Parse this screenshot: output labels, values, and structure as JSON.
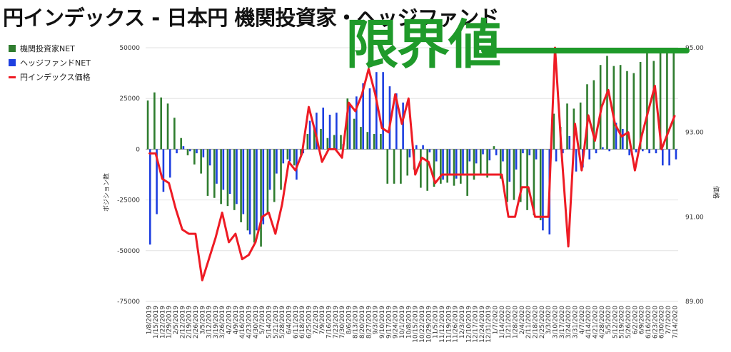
{
  "header": {
    "title": "円インデックス - 日本円 機関投資家・ヘッジファンド"
  },
  "annotation": {
    "limit_label": "限界値",
    "limit_color": "#1f9a2a"
  },
  "legend": [
    {
      "label": "機関投資家NET",
      "color": "#2f7d2f"
    },
    {
      "label": "ヘッジファンドNET",
      "color": "#1e3fe0"
    },
    {
      "label": "円インデックス価格",
      "color": "#ee1b24"
    }
  ],
  "chart_data": {
    "type": "bar",
    "title": "円インデックス - 日本円 機関投資家・ヘッジファンド",
    "ylabel_left": "ポジション数",
    "ylabel_right": "価格",
    "ylim_left": [
      -75000,
      50000
    ],
    "ylim_right": [
      89,
      95
    ],
    "y_ticks_left": [
      "50000",
      "25000",
      "0",
      "-25000",
      "-50000",
      "-75000"
    ],
    "y_ticks_right": [
      "95.00",
      "93.00",
      "91.00",
      "89.00"
    ],
    "limit_line_value": 95,
    "x_tick_labels": [
      "1/8/2019",
      "1/15/2019",
      "1/22/2019",
      "1/29/2019",
      "2/5/2019",
      "2/12/2019",
      "2/19/2019",
      "2/26/2019",
      "3/5/2019",
      "3/12/2019",
      "3/19/2019",
      "3/26/2019",
      "4/2/2019",
      "4/9/2019",
      "4/16/2019",
      "4/23/2019",
      "4/30/2019",
      "5/7/2019",
      "5/14/2019",
      "5/21/2019",
      "5/28/2019",
      "6/4/2019",
      "6/11/2019",
      "6/18/2019",
      "6/25/2019",
      "7/2/2019",
      "7/9/2019",
      "7/16/2019",
      "7/23/2019",
      "7/30/2019",
      "8/6/2019",
      "8/13/2019",
      "8/20/2019",
      "8/27/2019",
      "9/3/2019",
      "9/10/2019",
      "9/17/2019",
      "9/24/2019",
      "10/1/2019",
      "10/8/2019",
      "10/15/2019",
      "10/22/2019",
      "10/29/2019",
      "11/5/2019",
      "11/12/2019",
      "11/19/2019",
      "11/26/2019",
      "12/3/2019",
      "12/10/2019",
      "12/17/2019",
      "12/24/2019",
      "12/31/2019",
      "1/7/2020",
      "1/14/2020",
      "1/21/2020",
      "1/28/2020",
      "2/4/2020",
      "2/11/2020",
      "2/18/2020",
      "2/25/2020",
      "3/3/2020",
      "3/10/2020",
      "3/17/2020",
      "3/24/2020",
      "3/31/2020",
      "4/7/2020",
      "4/14/2020",
      "4/21/2020",
      "4/28/2020",
      "5/5/2020",
      "5/12/2020",
      "5/19/2020",
      "5/26/2020",
      "6/2/2020",
      "6/9/2020",
      "6/16/2020",
      "6/23/2020",
      "6/30/2020",
      "7/7/2020",
      "7/14/2020"
    ],
    "series": [
      {
        "name": "機関投資家NET",
        "color": "#2f7d2f",
        "values": [
          24000,
          28000,
          25500,
          22500,
          15500,
          5500,
          -3000,
          -7500,
          -12000,
          -23000,
          -24000,
          -27000,
          -28000,
          -30000,
          -36000,
          -40000,
          -46000,
          -48000,
          -32000,
          -26000,
          -20000,
          -5000,
          -8000,
          -3000,
          7500,
          11000,
          10000,
          5500,
          7000,
          7000,
          25000,
          15000,
          11000,
          8500,
          7500,
          7500,
          -17000,
          -17000,
          -17000,
          -13000,
          -10000,
          -19000,
          -20500,
          -18500,
          -17000,
          -16500,
          -18000,
          -17000,
          -23000,
          -15000,
          -13000,
          -14000,
          1500,
          -14500,
          -26000,
          -25000,
          -26000,
          -30000,
          -32500,
          -35000,
          0,
          17500,
          11000,
          22500,
          20000,
          23000,
          32000,
          34000,
          41500,
          46000,
          41000,
          41500,
          38500,
          37500,
          43000,
          48500,
          43500,
          48000,
          48500,
          48000
        ]
      },
      {
        "name": "ヘッジファンドNET",
        "color": "#1e3fe0",
        "values": [
          -47000,
          -32000,
          -21000,
          -14000,
          -2000,
          1500,
          -1000,
          -2000,
          -4000,
          -8000,
          -17000,
          -20000,
          -22000,
          -27000,
          -32000,
          -42000,
          -40000,
          -37000,
          -20000,
          -12000,
          -7000,
          -6000,
          -15000,
          -2000,
          14000,
          18000,
          20500,
          17000,
          18000,
          2500,
          22000,
          26000,
          32500,
          30000,
          38000,
          38000,
          31000,
          27500,
          23000,
          -4000,
          2000,
          2000,
          -1500,
          -6000,
          -15000,
          -12000,
          -14500,
          -13000,
          -6000,
          -7000,
          -2500,
          -5500,
          -3000,
          -6000,
          -16000,
          -10000,
          -2000,
          -3000,
          -5000,
          -40000,
          -42000,
          -6000,
          -2000,
          6500,
          -11000,
          -9000,
          -5000,
          -2000,
          1000,
          -1000,
          13000,
          10000,
          -3000,
          -1500,
          -1000,
          -2000,
          -2000,
          -8000,
          -8000,
          -5000
        ]
      },
      {
        "name": "円インデックス価格",
        "color": "#ee1b24",
        "values": [
          92.5,
          92.5,
          91.9,
          91.8,
          91.2,
          90.7,
          90.6,
          90.6,
          89.5,
          90.0,
          90.5,
          91.1,
          90.4,
          90.6,
          90.0,
          90.1,
          90.4,
          91.0,
          91.1,
          90.6,
          91.3,
          92.3,
          92.1,
          92.5,
          93.6,
          93.0,
          92.3,
          92.6,
          92.6,
          92.4,
          93.7,
          93.5,
          93.9,
          94.5,
          93.9,
          93.1,
          93.0,
          93.9,
          93.2,
          93.8,
          92.0,
          92.4,
          92.3,
          91.8,
          92.0,
          92.0,
          92.0,
          92.0,
          92.0,
          92.0,
          92.0,
          92.0,
          92.0,
          92.0,
          91.0,
          91.0,
          91.7,
          91.7,
          91.0,
          91.0,
          91.0,
          95.0,
          92.5,
          90.3,
          93.2,
          92.1,
          93.4,
          92.8,
          93.6,
          94.0,
          93.2,
          92.9,
          93.0,
          92.1,
          92.9,
          93.5,
          94.1,
          92.6,
          93.0,
          93.4
        ]
      }
    ]
  }
}
